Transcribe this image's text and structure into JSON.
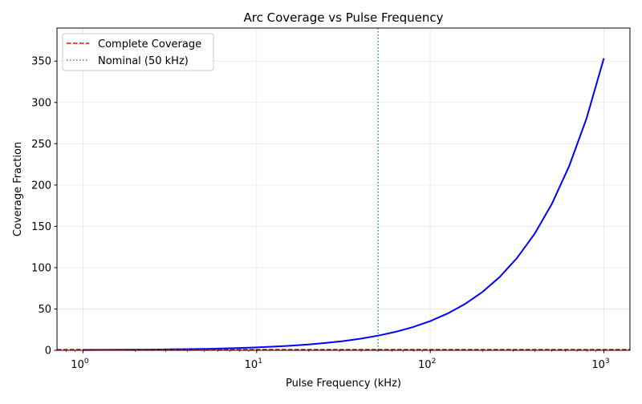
{
  "chart_data": {
    "type": "line",
    "title": "Arc Coverage vs Pulse Frequency",
    "xlabel": "Pulse Frequency (kHz)",
    "ylabel": "Coverage Fraction",
    "xscale": "log",
    "xlim": [
      0.708,
      1413
    ],
    "ylim": [
      0,
      390
    ],
    "grid": true,
    "legend_position": "top-left",
    "x_ticks": [
      1,
      10,
      100,
      1000
    ],
    "x_tick_labels": [
      {
        "base": "10",
        "exp": "0"
      },
      {
        "base": "10",
        "exp": "1"
      },
      {
        "base": "10",
        "exp": "2"
      },
      {
        "base": "10",
        "exp": "3"
      }
    ],
    "y_ticks": [
      0,
      50,
      100,
      150,
      200,
      250,
      300,
      350
    ],
    "y_tick_labels": [
      "0",
      "50",
      "100",
      "150",
      "200",
      "250",
      "300",
      "350"
    ],
    "series": [
      {
        "color": "#0000ff",
        "style": "solid",
        "x": [
          1,
          1.259,
          1.585,
          1.995,
          2.512,
          3.162,
          3.981,
          5.012,
          6.31,
          7.943,
          10,
          12.59,
          15.85,
          19.95,
          25.12,
          31.62,
          39.81,
          50.12,
          63.1,
          79.43,
          100,
          125.9,
          158.5,
          199.5,
          251.2,
          316.2,
          398.1,
          501.2,
          631,
          794.3,
          1000
        ],
        "y": [
          0.353,
          0.445,
          0.56,
          0.705,
          0.888,
          1.118,
          1.407,
          1.771,
          2.23,
          2.807,
          3.534,
          4.449,
          5.601,
          7.051,
          8.877,
          11.18,
          14.07,
          17.71,
          22.3,
          28.07,
          35.34,
          44.49,
          56.01,
          70.51,
          88.77,
          111.8,
          140.7,
          177.1,
          223,
          280.7,
          353.4
        ]
      }
    ],
    "reference_lines": [
      {
        "name": "Complete Coverage",
        "orientation": "horizontal",
        "value": 1,
        "color": "#ff0000",
        "style": "dashed"
      },
      {
        "name": "Nominal (50 kHz)",
        "orientation": "vertical",
        "value": 50,
        "color": "#2ca02c",
        "style": "dotted"
      }
    ]
  }
}
